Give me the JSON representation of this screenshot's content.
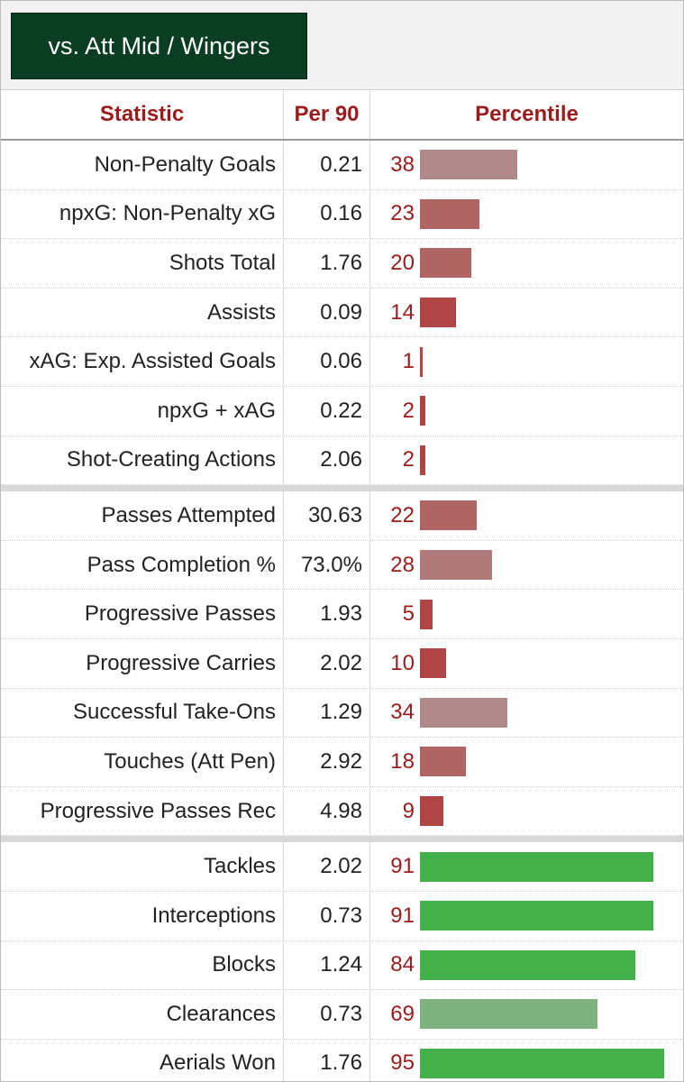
{
  "tab": {
    "label": "vs. Att Mid / Wingers"
  },
  "header": {
    "statistic": "Statistic",
    "per90": "Per 90",
    "percentile": "Percentile"
  },
  "colors": {
    "high": "#44b04a",
    "high_mid": "#7fb27f",
    "low_light": "#b08a8a",
    "low_mid": "#b06464",
    "low_dark": "#b04545",
    "percentile_text": "#9b1c1c"
  },
  "groups": [
    {
      "rows": [
        {
          "stat": "Non-Penalty Goals",
          "per90": "0.21",
          "percentile": 38,
          "color": "#b08a8a"
        },
        {
          "stat": "npxG: Non-Penalty xG",
          "per90": "0.16",
          "percentile": 23,
          "color": "#b06464"
        },
        {
          "stat": "Shots Total",
          "per90": "1.76",
          "percentile": 20,
          "color": "#b06464"
        },
        {
          "stat": "Assists",
          "per90": "0.09",
          "percentile": 14,
          "color": "#b04545"
        },
        {
          "stat": "xAG: Exp. Assisted Goals",
          "per90": "0.06",
          "percentile": 1,
          "color": "#b04545"
        },
        {
          "stat": "npxG + xAG",
          "per90": "0.22",
          "percentile": 2,
          "color": "#b04545"
        },
        {
          "stat": "Shot-Creating Actions",
          "per90": "2.06",
          "percentile": 2,
          "color": "#b04545"
        }
      ]
    },
    {
      "rows": [
        {
          "stat": "Passes Attempted",
          "per90": "30.63",
          "percentile": 22,
          "color": "#b06464"
        },
        {
          "stat": "Pass Completion %",
          "per90": "73.0%",
          "percentile": 28,
          "color": "#b07a7a"
        },
        {
          "stat": "Progressive Passes",
          "per90": "1.93",
          "percentile": 5,
          "color": "#b04545"
        },
        {
          "stat": "Progressive Carries",
          "per90": "2.02",
          "percentile": 10,
          "color": "#b04545"
        },
        {
          "stat": "Successful Take-Ons",
          "per90": "1.29",
          "percentile": 34,
          "color": "#b08a8a"
        },
        {
          "stat": "Touches (Att Pen)",
          "per90": "2.92",
          "percentile": 18,
          "color": "#b06464"
        },
        {
          "stat": "Progressive Passes Rec",
          "per90": "4.98",
          "percentile": 9,
          "color": "#b04545"
        }
      ]
    },
    {
      "rows": [
        {
          "stat": "Tackles",
          "per90": "2.02",
          "percentile": 91,
          "color": "#44b04a"
        },
        {
          "stat": "Interceptions",
          "per90": "0.73",
          "percentile": 91,
          "color": "#44b04a"
        },
        {
          "stat": "Blocks",
          "per90": "1.24",
          "percentile": 84,
          "color": "#44b04a"
        },
        {
          "stat": "Clearances",
          "per90": "0.73",
          "percentile": 69,
          "color": "#7fb27f"
        },
        {
          "stat": "Aerials Won",
          "per90": "1.76",
          "percentile": 95,
          "color": "#44b04a"
        }
      ]
    }
  ]
}
